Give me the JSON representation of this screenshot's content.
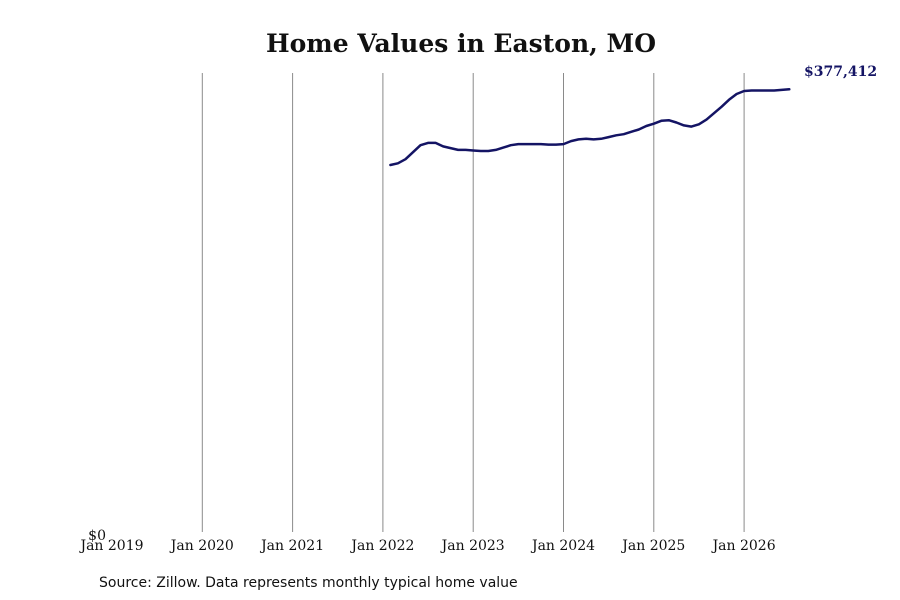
{
  "chart_data": {
    "type": "line",
    "title": "Home Values in Easton, MO",
    "source_note": "Source: Zillow. Data represents monthly typical home value",
    "x_tick_labels": [
      "Jan 2019",
      "Jan 2020",
      "Jan 2021",
      "Jan 2022",
      "Jan 2023",
      "Jan 2024",
      "Jan 2025",
      "Jan 2026"
    ],
    "y_tick_label": "$0",
    "ylim": [
      0,
      400000
    ],
    "xlim": [
      "2019-01",
      "2026-07"
    ],
    "grid": "vertical",
    "line_color": "#141464",
    "grid_color": "#8a8a8a",
    "end_value_label": "$377,412",
    "series": [
      {
        "x": [
          "2022-02",
          "2022-03",
          "2022-04",
          "2022-05",
          "2022-06",
          "2022-07",
          "2022-08",
          "2022-09",
          "2022-10",
          "2022-11",
          "2022-12",
          "2023-01",
          "2023-02",
          "2023-03",
          "2023-04",
          "2023-05",
          "2023-06",
          "2023-07",
          "2023-08",
          "2023-09",
          "2023-10",
          "2023-11",
          "2023-12",
          "2024-01",
          "2024-02",
          "2024-03",
          "2024-04",
          "2024-05",
          "2024-06",
          "2024-07",
          "2024-08",
          "2024-09",
          "2024-10",
          "2024-11",
          "2024-12",
          "2025-01",
          "2025-02",
          "2025-03",
          "2025-04",
          "2025-05",
          "2025-06",
          "2025-07",
          "2025-08",
          "2025-09",
          "2025-10",
          "2025-11",
          "2025-12",
          "2026-01",
          "2026-02",
          "2026-03",
          "2026-04",
          "2026-05",
          "2026-06",
          "2026-07"
        ],
        "values": [
          315000,
          316500,
          320000,
          326000,
          332000,
          334000,
          334000,
          331000,
          329500,
          328000,
          328000,
          327500,
          327000,
          327000,
          328000,
          330000,
          332000,
          333000,
          333000,
          333000,
          333000,
          332500,
          332500,
          333000,
          335500,
          337000,
          337500,
          337000,
          337500,
          339000,
          340500,
          341500,
          343500,
          345500,
          348500,
          350500,
          353000,
          353500,
          351500,
          349000,
          348000,
          350000,
          354000,
          359500,
          365000,
          371000,
          376000,
          378500,
          379000,
          379000,
          379000,
          379000,
          379500,
          380000
        ]
      }
    ]
  }
}
